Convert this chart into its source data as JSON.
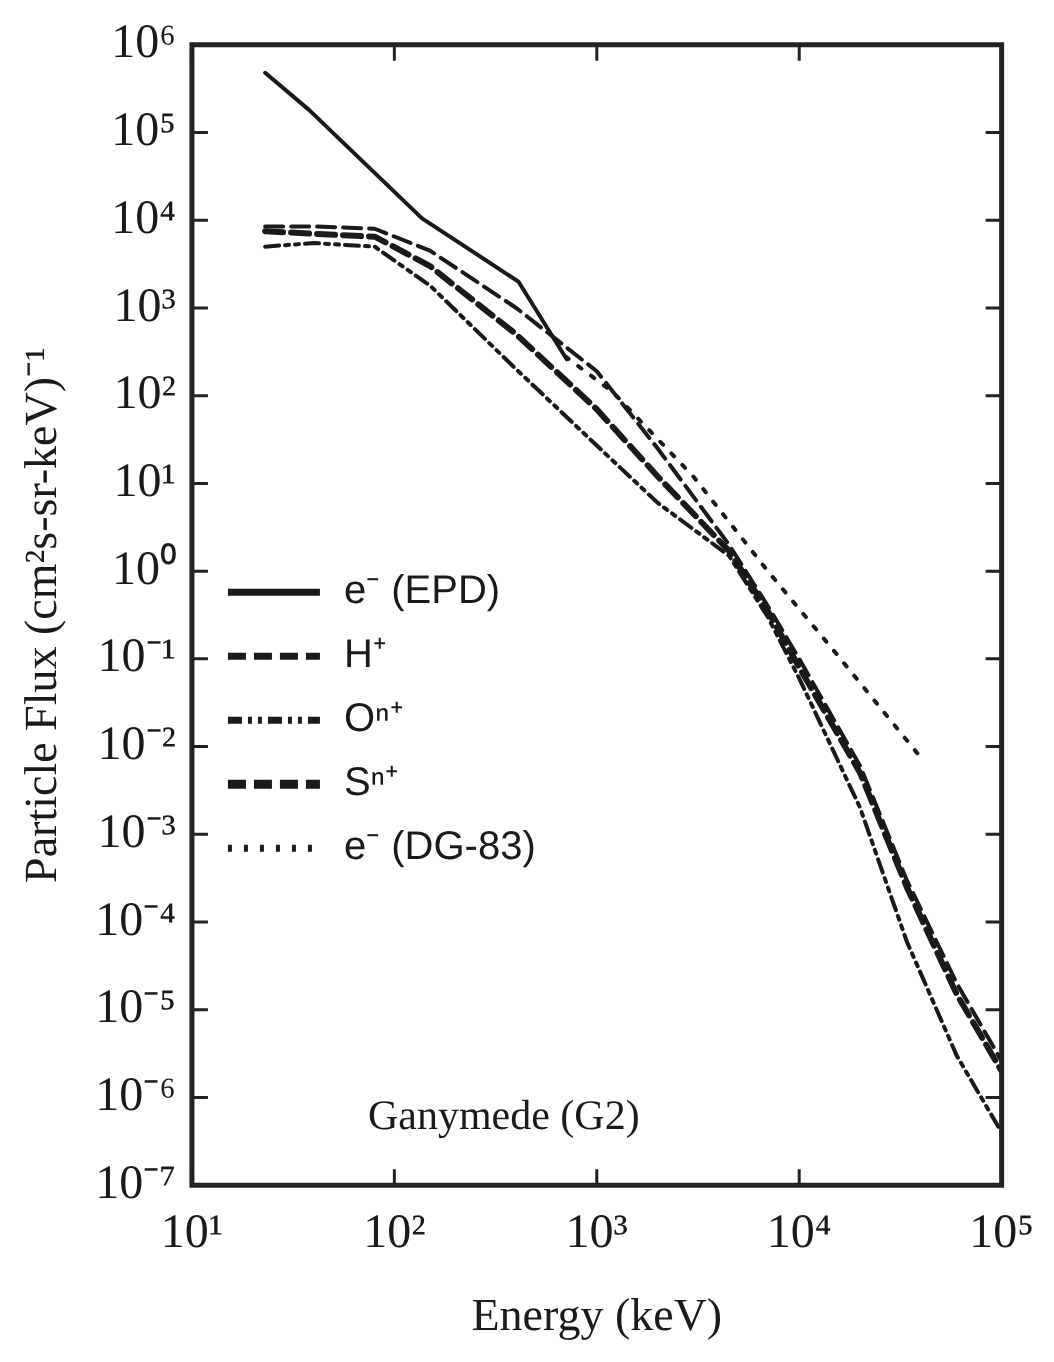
{
  "chart_data": {
    "type": "line",
    "xlabel": "Energy (keV)",
    "ylabel": "Particle Flux (cm²s-sr-keV)⁻¹",
    "log": "xy",
    "xlim": [
      10,
      100000
    ],
    "ylim": [
      1e-07,
      1000000
    ],
    "xticks": [
      {
        "value": 10,
        "label": "10¹"
      },
      {
        "value": 100,
        "label": "10²"
      },
      {
        "value": 1000,
        "label": "10³"
      },
      {
        "value": 10000,
        "label": "10⁴"
      },
      {
        "value": 100000,
        "label": "10⁵"
      }
    ],
    "yticks": [
      {
        "value": 1e-07,
        "label": "10⁻⁷"
      },
      {
        "value": 1e-06,
        "label": "10⁻⁶"
      },
      {
        "value": 1e-05,
        "label": "10⁻⁵"
      },
      {
        "value": 0.0001,
        "label": "10⁻⁴"
      },
      {
        "value": 0.001,
        "label": "10⁻³"
      },
      {
        "value": 0.01,
        "label": "10⁻²"
      },
      {
        "value": 0.1,
        "label": "10⁻¹"
      },
      {
        "value": 1,
        "label": "10⁰"
      },
      {
        "value": 10,
        "label": "10¹"
      },
      {
        "value": 100,
        "label": "10²"
      },
      {
        "value": 1000,
        "label": "10³"
      },
      {
        "value": 10000,
        "label": "10⁴"
      },
      {
        "value": 100000,
        "label": "10⁵"
      },
      {
        "value": 1000000,
        "label": "10⁶"
      }
    ],
    "grid": false,
    "legend": "left",
    "marker": "none",
    "annotations": [
      "Ganymede (G2)"
    ],
    "series": [
      {
        "name": "e⁻ (EPD)",
        "color": "#1a1a1a",
        "line_style": "solid",
        "x": [
          23,
          38,
          137,
          410,
          710
        ],
        "values": [
          480000,
          180000,
          10500,
          2000,
          260
        ]
      },
      {
        "name": "H⁺",
        "color": "#1a1a1a",
        "line_style": "dashed",
        "x": [
          23,
          40,
          80,
          150,
          400,
          1000,
          2000,
          4500,
          7000,
          10000,
          20000,
          34000,
          60000,
          100000
        ],
        "values": [
          8500,
          8500,
          8000,
          4500,
          1000,
          190,
          25,
          2,
          0.4,
          0.1,
          0.006,
          0.0003,
          2e-05,
          2.6e-06
        ]
      },
      {
        "name": "Oⁿ⁺",
        "color": "#1a1a1a",
        "line_style": "dashdot",
        "x": [
          23,
          40,
          80,
          150,
          400,
          1000,
          2000,
          4500,
          7000,
          10000,
          20000,
          34000,
          60000,
          100000
        ],
        "values": [
          5000,
          5500,
          5000,
          1800,
          200,
          27,
          6,
          1.5,
          0.3,
          0.06,
          0.002,
          6e-05,
          3e-06,
          4e-07
        ]
      },
      {
        "name": "Sⁿ⁺",
        "color": "#1a1a1a",
        "line_style": "dashed",
        "x": [
          23,
          40,
          80,
          150,
          400,
          1000,
          2000,
          4500,
          7000,
          10000,
          20000,
          34000,
          60000,
          100000
        ],
        "values": [
          7500,
          7000,
          6500,
          3000,
          500,
          70,
          12,
          1.7,
          0.35,
          0.08,
          0.005,
          0.00025,
          1.5e-05,
          2e-06
        ]
      },
      {
        "name": "e⁻ (DG-83)",
        "color": "#1a1a1a",
        "line_style": "dotted",
        "x": [
          700,
          1200,
          3000,
          7000,
          15000,
          39000
        ],
        "values": [
          280,
          110,
          12,
          1.0,
          0.12,
          0.008
        ]
      }
    ]
  }
}
